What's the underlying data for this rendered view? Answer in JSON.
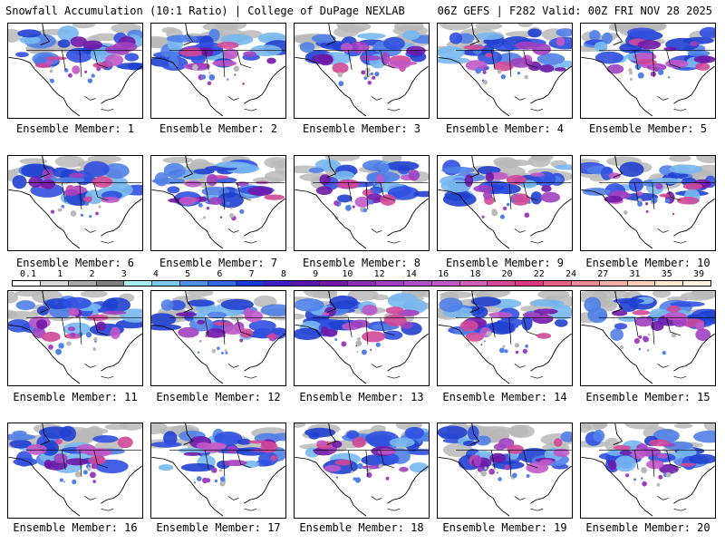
{
  "header": {
    "title_left": "Snowfall Accumulation (10:1 Ratio) | College of DuPage NEXLAB",
    "title_right": "06Z GEFS | F282 Valid: 00Z FRI NOV 28 2025"
  },
  "members": [
    {
      "label": "Ensemble Member: 1"
    },
    {
      "label": "Ensemble Member: 2"
    },
    {
      "label": "Ensemble Member: 3"
    },
    {
      "label": "Ensemble Member: 4"
    },
    {
      "label": "Ensemble Member: 5"
    },
    {
      "label": "Ensemble Member: 6"
    },
    {
      "label": "Ensemble Member: 7"
    },
    {
      "label": "Ensemble Member: 8"
    },
    {
      "label": "Ensemble Member: 9"
    },
    {
      "label": "Ensemble Member: 10"
    },
    {
      "label": "Ensemble Member: 11"
    },
    {
      "label": "Ensemble Member: 12"
    },
    {
      "label": "Ensemble Member: 13"
    },
    {
      "label": "Ensemble Member: 14"
    },
    {
      "label": "Ensemble Member: 15"
    },
    {
      "label": "Ensemble Member: 16"
    },
    {
      "label": "Ensemble Member: 17"
    },
    {
      "label": "Ensemble Member: 18"
    },
    {
      "label": "Ensemble Member: 19"
    },
    {
      "label": "Ensemble Member: 20"
    }
  ],
  "legend": {
    "labels": [
      "0.1",
      "1",
      "2",
      "3",
      "4",
      "5",
      "6",
      "7",
      "8",
      "9",
      "10",
      "12",
      "14",
      "16",
      "18",
      "20",
      "22",
      "24",
      "27",
      "31",
      "35",
      "39"
    ],
    "colors": [
      "#ffffff",
      "#d8d8d8",
      "#a8a8a8",
      "#808080",
      "#a8f0f0",
      "#78c8f0",
      "#5090e8",
      "#3068e8",
      "#1838d8",
      "#4020c8",
      "#5818b0",
      "#7018a8",
      "#8830b0",
      "#a040c0",
      "#b050c8",
      "#c058c8",
      "#d060b8",
      "#d84898",
      "#e03880",
      "#e86088",
      "#f08898",
      "#f4b0a8",
      "#f8d0b8",
      "#fce8d0",
      "#fff4e0"
    ]
  }
}
